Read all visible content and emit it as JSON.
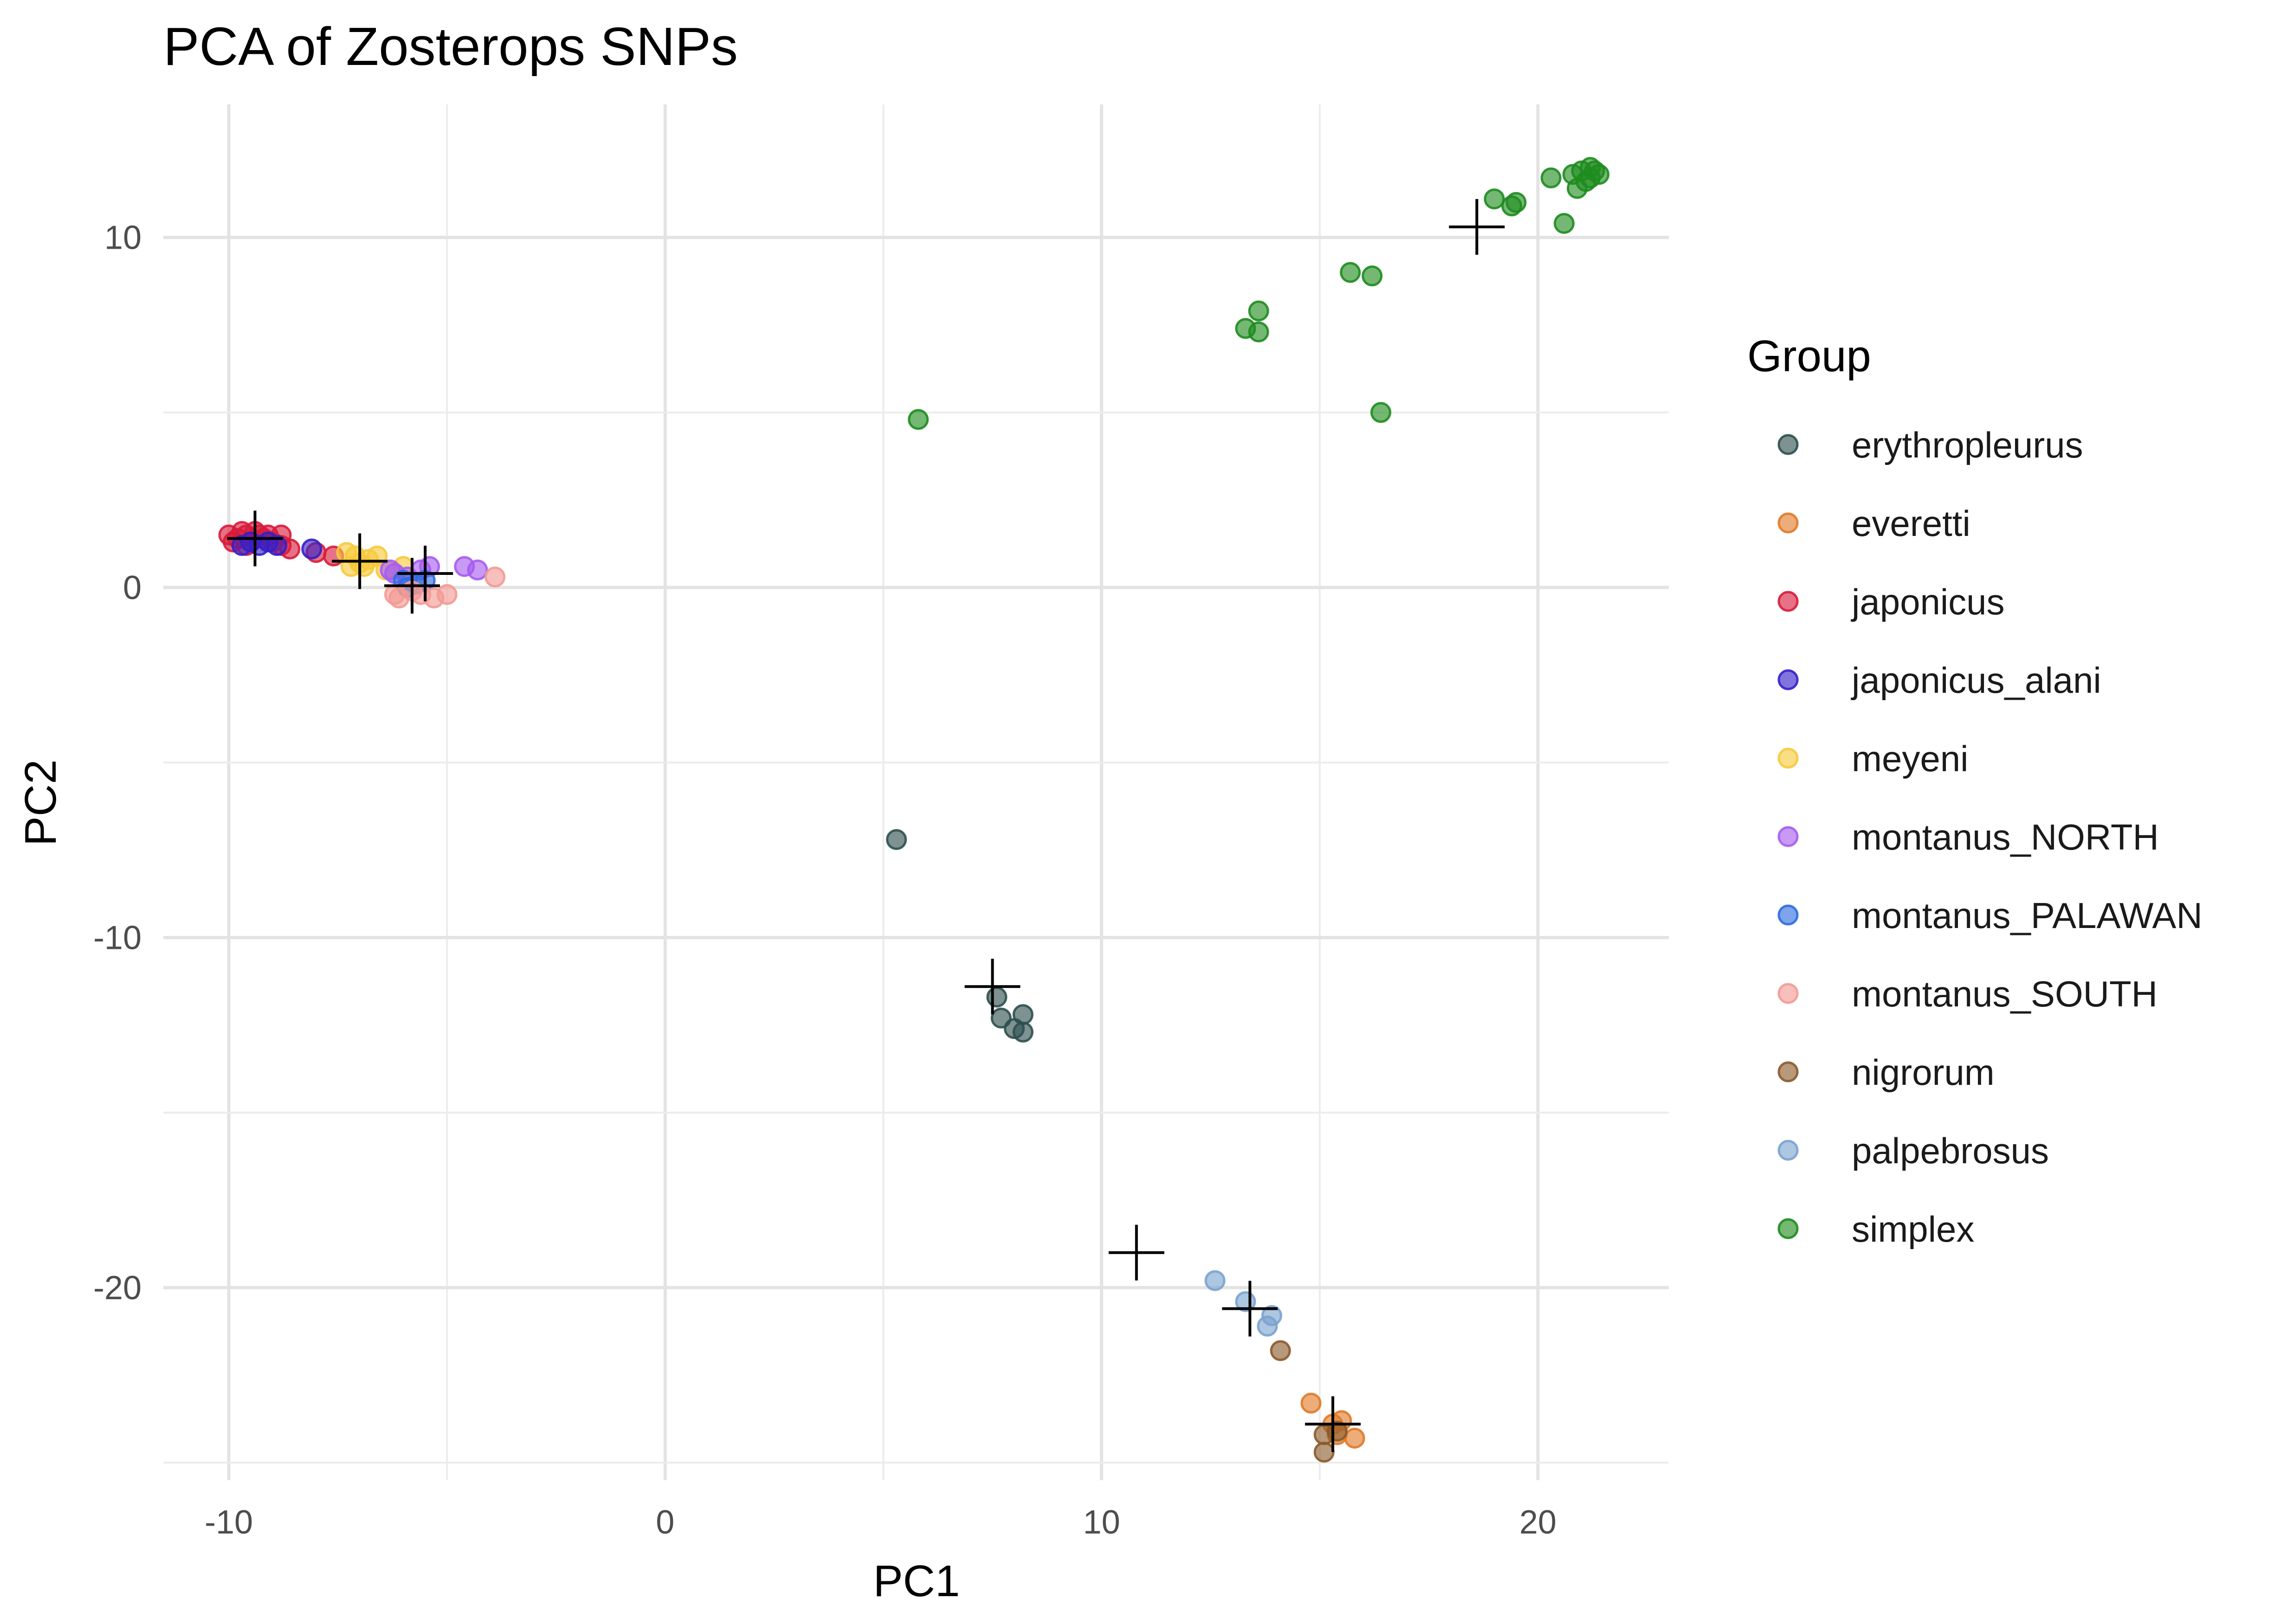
{
  "chart_data": {
    "type": "scatter",
    "title": "PCA of Zosterops SNPs",
    "xlabel": "PC1",
    "ylabel": "PC2",
    "xlim": [
      -11.5,
      23
    ],
    "ylim": [
      -25.5,
      13.8
    ],
    "xticks": [
      -10,
      0,
      10,
      20
    ],
    "yticks": [
      10,
      0,
      -10,
      -20
    ],
    "xtick_labels": [
      "-10",
      "0",
      "10",
      "20"
    ],
    "ytick_labels": [
      "10",
      "0",
      "-10",
      "-20"
    ],
    "grid": true,
    "legend": {
      "title": "Group",
      "position": "right"
    },
    "series": [
      {
        "name": "erythropleurus",
        "color": "#2f4f4f",
        "points": [
          [
            5.3,
            -7.2
          ],
          [
            7.6,
            -11.7
          ],
          [
            7.7,
            -12.3
          ],
          [
            8.0,
            -12.6
          ],
          [
            8.2,
            -12.7
          ],
          [
            8.2,
            -12.2
          ]
        ]
      },
      {
        "name": "everetti",
        "color": "#e07a28",
        "points": [
          [
            14.8,
            -23.3
          ],
          [
            15.3,
            -23.9
          ],
          [
            15.5,
            -23.8
          ],
          [
            15.8,
            -24.3
          ],
          [
            15.4,
            -24.2
          ]
        ]
      },
      {
        "name": "japonicus",
        "color": "#d81b3b",
        "points": [
          [
            -10.0,
            1.5
          ],
          [
            -9.8,
            1.4
          ],
          [
            -9.7,
            1.6
          ],
          [
            -9.6,
            1.5
          ],
          [
            -9.5,
            1.3
          ],
          [
            -9.4,
            1.6
          ],
          [
            -9.3,
            1.5
          ],
          [
            -9.2,
            1.4
          ],
          [
            -9.6,
            1.2
          ],
          [
            -9.9,
            1.3
          ],
          [
            -9.1,
            1.5
          ],
          [
            -9.0,
            1.3
          ],
          [
            -8.8,
            1.5
          ],
          [
            -8.8,
            1.2
          ],
          [
            -8.6,
            1.1
          ],
          [
            -8.0,
            1.0
          ],
          [
            -7.6,
            0.9
          ]
        ]
      },
      {
        "name": "japonicus_alani",
        "color": "#3320c8",
        "points": [
          [
            -9.7,
            1.2
          ],
          [
            -9.5,
            1.3
          ],
          [
            -9.3,
            1.2
          ],
          [
            -9.1,
            1.3
          ],
          [
            -8.9,
            1.2
          ],
          [
            -8.1,
            1.1
          ]
        ]
      },
      {
        "name": "meyeni",
        "color": "#f7c93a",
        "points": [
          [
            -7.3,
            1.0
          ],
          [
            -7.1,
            0.9
          ],
          [
            -7.0,
            0.7
          ],
          [
            -6.9,
            0.6
          ],
          [
            -6.8,
            0.8
          ],
          [
            -6.6,
            0.9
          ],
          [
            -7.2,
            0.6
          ],
          [
            -6.4,
            0.5
          ],
          [
            -6.0,
            0.6
          ]
        ]
      },
      {
        "name": "montanus_NORTH",
        "color": "#a65cf0",
        "points": [
          [
            -6.3,
            0.5
          ],
          [
            -6.2,
            0.4
          ],
          [
            -5.9,
            0.3
          ],
          [
            -5.6,
            0.5
          ],
          [
            -5.4,
            0.6
          ],
          [
            -4.6,
            0.6
          ],
          [
            -4.3,
            0.5
          ]
        ]
      },
      {
        "name": "montanus_PALAWAN",
        "color": "#2e6ce0",
        "points": [
          [
            -6.0,
            0.2
          ],
          [
            -5.9,
            0.0
          ],
          [
            -5.7,
            0.1
          ],
          [
            -5.5,
            0.2
          ]
        ]
      },
      {
        "name": "montanus_SOUTH",
        "color": "#f39a93",
        "points": [
          [
            -6.2,
            -0.2
          ],
          [
            -6.1,
            -0.3
          ],
          [
            -5.8,
            -0.1
          ],
          [
            -5.6,
            -0.2
          ],
          [
            -5.3,
            -0.3
          ],
          [
            -5.0,
            -0.2
          ],
          [
            -3.9,
            0.3
          ]
        ]
      },
      {
        "name": "nigrorum",
        "color": "#8b5a2b",
        "points": [
          [
            14.1,
            -21.8
          ],
          [
            15.1,
            -24.2
          ],
          [
            15.1,
            -24.7
          ],
          [
            15.4,
            -24.1
          ]
        ]
      },
      {
        "name": "palpebrosus",
        "color": "#7aa3cf",
        "points": [
          [
            12.6,
            -19.8
          ],
          [
            13.3,
            -20.4
          ],
          [
            13.8,
            -21.1
          ],
          [
            13.9,
            -20.8
          ]
        ]
      },
      {
        "name": "simplex",
        "color": "#1e8c1e",
        "points": [
          [
            5.8,
            4.8
          ],
          [
            13.3,
            7.4
          ],
          [
            13.6,
            7.3
          ],
          [
            13.6,
            7.9
          ],
          [
            15.7,
            9.0
          ],
          [
            16.2,
            8.9
          ],
          [
            16.4,
            5.0
          ],
          [
            19.0,
            11.1
          ],
          [
            19.4,
            10.9
          ],
          [
            19.5,
            11.0
          ],
          [
            20.3,
            11.7
          ],
          [
            20.6,
            10.4
          ],
          [
            20.8,
            11.8
          ],
          [
            20.9,
            11.4
          ],
          [
            21.0,
            11.9
          ],
          [
            21.1,
            11.6
          ],
          [
            21.2,
            12.0
          ],
          [
            21.2,
            11.7
          ],
          [
            21.3,
            11.9
          ],
          [
            21.4,
            11.8
          ]
        ]
      }
    ],
    "centroids": [
      [
        -9.4,
        1.4
      ],
      [
        -7.0,
        0.75
      ],
      [
        -5.8,
        0.05
      ],
      [
        -5.5,
        0.4
      ],
      [
        7.5,
        -11.4
      ],
      [
        10.8,
        -19.0
      ],
      [
        13.4,
        -20.6
      ],
      [
        15.3,
        -23.9
      ],
      [
        18.6,
        10.3
      ]
    ]
  }
}
